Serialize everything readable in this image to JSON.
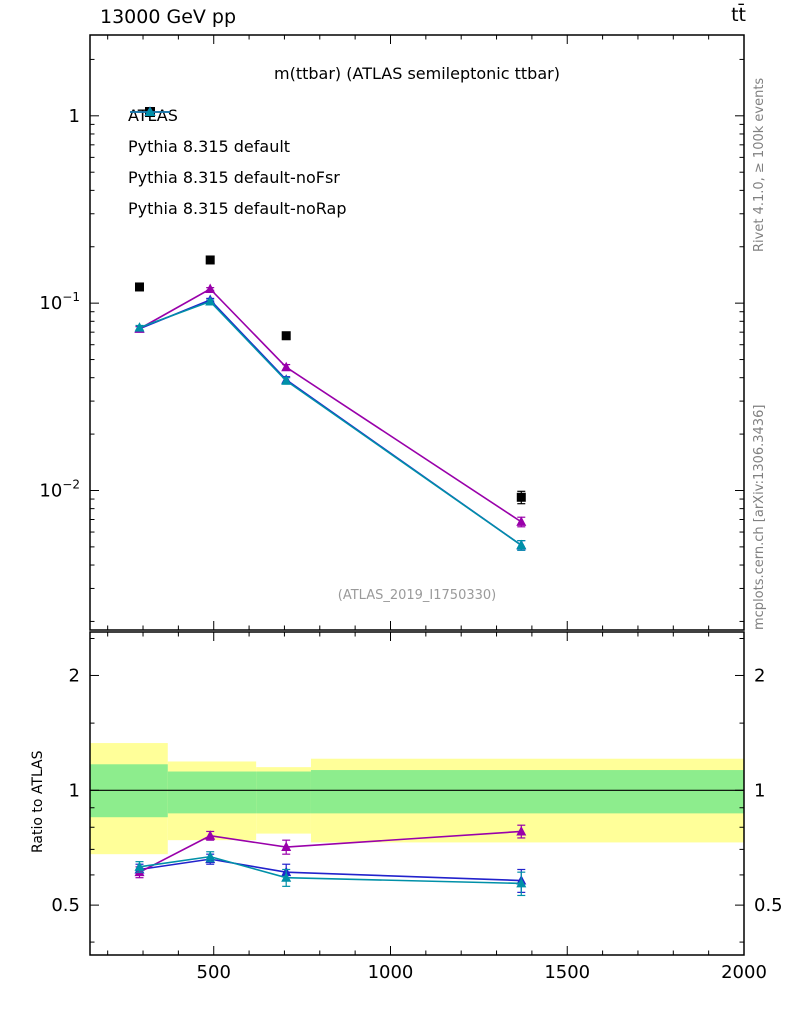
{
  "header": {
    "left": "13000 GeV pp",
    "right": "tt̄"
  },
  "side_labels": {
    "top_right": "Rivet 4.1.0, ≥ 100k events",
    "bottom_right": "mcplots.cern.ch [arXiv:1306.3436]"
  },
  "watermark": "(ATLAS_2019_I1750330)",
  "colors": {
    "band_yellow": "#ffff99",
    "band_green": "#8ded8d",
    "frame": "#000000",
    "atlas_black": "#000000",
    "pythia_blue": "#2222cc",
    "pythia_purple": "#9900aa",
    "pythia_teal": "#0090a8"
  },
  "chart_data": {
    "type": "line",
    "title": "m(ttbar) (ATLAS semileptonic ttbar)",
    "xlabel": "",
    "x": [
      290,
      490,
      705,
      1370
    ],
    "xlim": [
      150,
      2000
    ],
    "x_ticks": [
      500,
      1000,
      1500,
      2000
    ],
    "x_minor_step": 100,
    "main_panel": {
      "yscale": "log",
      "ylim": [
        0.0018,
        2.7
      ],
      "y_ticks": [
        1,
        0.1,
        0.01
      ],
      "series": [
        {
          "name": "ATLAS",
          "type": "scatter",
          "marker": "square",
          "color": "#000000",
          "values": [
            0.122,
            0.17,
            0.067,
            0.0092
          ],
          "yerr": [
            0.005,
            0.006,
            0.003,
            0.0007
          ]
        },
        {
          "name": "Pythia 8.315 default",
          "type": "line",
          "marker": "triangle",
          "color": "#2222cc",
          "values": [
            0.073,
            0.104,
            0.039,
            0.0051
          ],
          "yerr": [
            0.002,
            0.002,
            0.0015,
            0.0003
          ]
        },
        {
          "name": "Pythia 8.315 default-noFsr",
          "type": "line",
          "marker": "triangle",
          "color": "#9900aa",
          "values": [
            0.073,
            0.119,
            0.0455,
            0.0068
          ],
          "yerr": [
            0.002,
            0.002,
            0.0015,
            0.0004
          ]
        },
        {
          "name": "Pythia 8.315 default-noRap",
          "type": "line",
          "marker": "triangle",
          "color": "#0090a8",
          "values": [
            0.074,
            0.102,
            0.0385,
            0.0051
          ],
          "yerr": [
            0.002,
            0.002,
            0.0015,
            0.0003
          ]
        }
      ]
    },
    "ratio_panel": {
      "ylabel": "Ratio to ATLAS",
      "yscale": "log",
      "ylim": [
        0.37,
        2.6
      ],
      "y_ticks": [
        2,
        1,
        0.5
      ],
      "y_minor_ticks": [
        0.4,
        0.6,
        0.7,
        0.8,
        0.9,
        1.5,
        2.5
      ],
      "reference_line": 1,
      "bands": [
        {
          "x0": 150,
          "x1": 370,
          "yellow": [
            0.68,
            1.33
          ],
          "green": [
            0.85,
            1.17
          ]
        },
        {
          "x0": 370,
          "x1": 620,
          "yellow": [
            0.74,
            1.19
          ],
          "green": [
            0.87,
            1.12
          ]
        },
        {
          "x0": 620,
          "x1": 775,
          "yellow": [
            0.77,
            1.15
          ],
          "green": [
            0.87,
            1.12
          ]
        },
        {
          "x0": 775,
          "x1": 2000,
          "yellow": [
            0.73,
            1.21
          ],
          "green": [
            0.87,
            1.13
          ]
        }
      ],
      "series": [
        {
          "name": "Pythia 8.315 default",
          "marker": "triangle",
          "color": "#2222cc",
          "values": [
            0.62,
            0.66,
            0.61,
            0.58
          ],
          "yerr": [
            0.02,
            0.02,
            0.03,
            0.04
          ]
        },
        {
          "name": "Pythia 8.315 default-noFsr",
          "marker": "triangle",
          "color": "#9900aa",
          "values": [
            0.61,
            0.76,
            0.71,
            0.78
          ],
          "yerr": [
            0.02,
            0.02,
            0.03,
            0.03
          ]
        },
        {
          "name": "Pythia 8.315 default-noRap",
          "marker": "triangle",
          "color": "#0090a8",
          "values": [
            0.63,
            0.67,
            0.59,
            0.57
          ],
          "yerr": [
            0.02,
            0.02,
            0.03,
            0.04
          ]
        }
      ]
    }
  }
}
